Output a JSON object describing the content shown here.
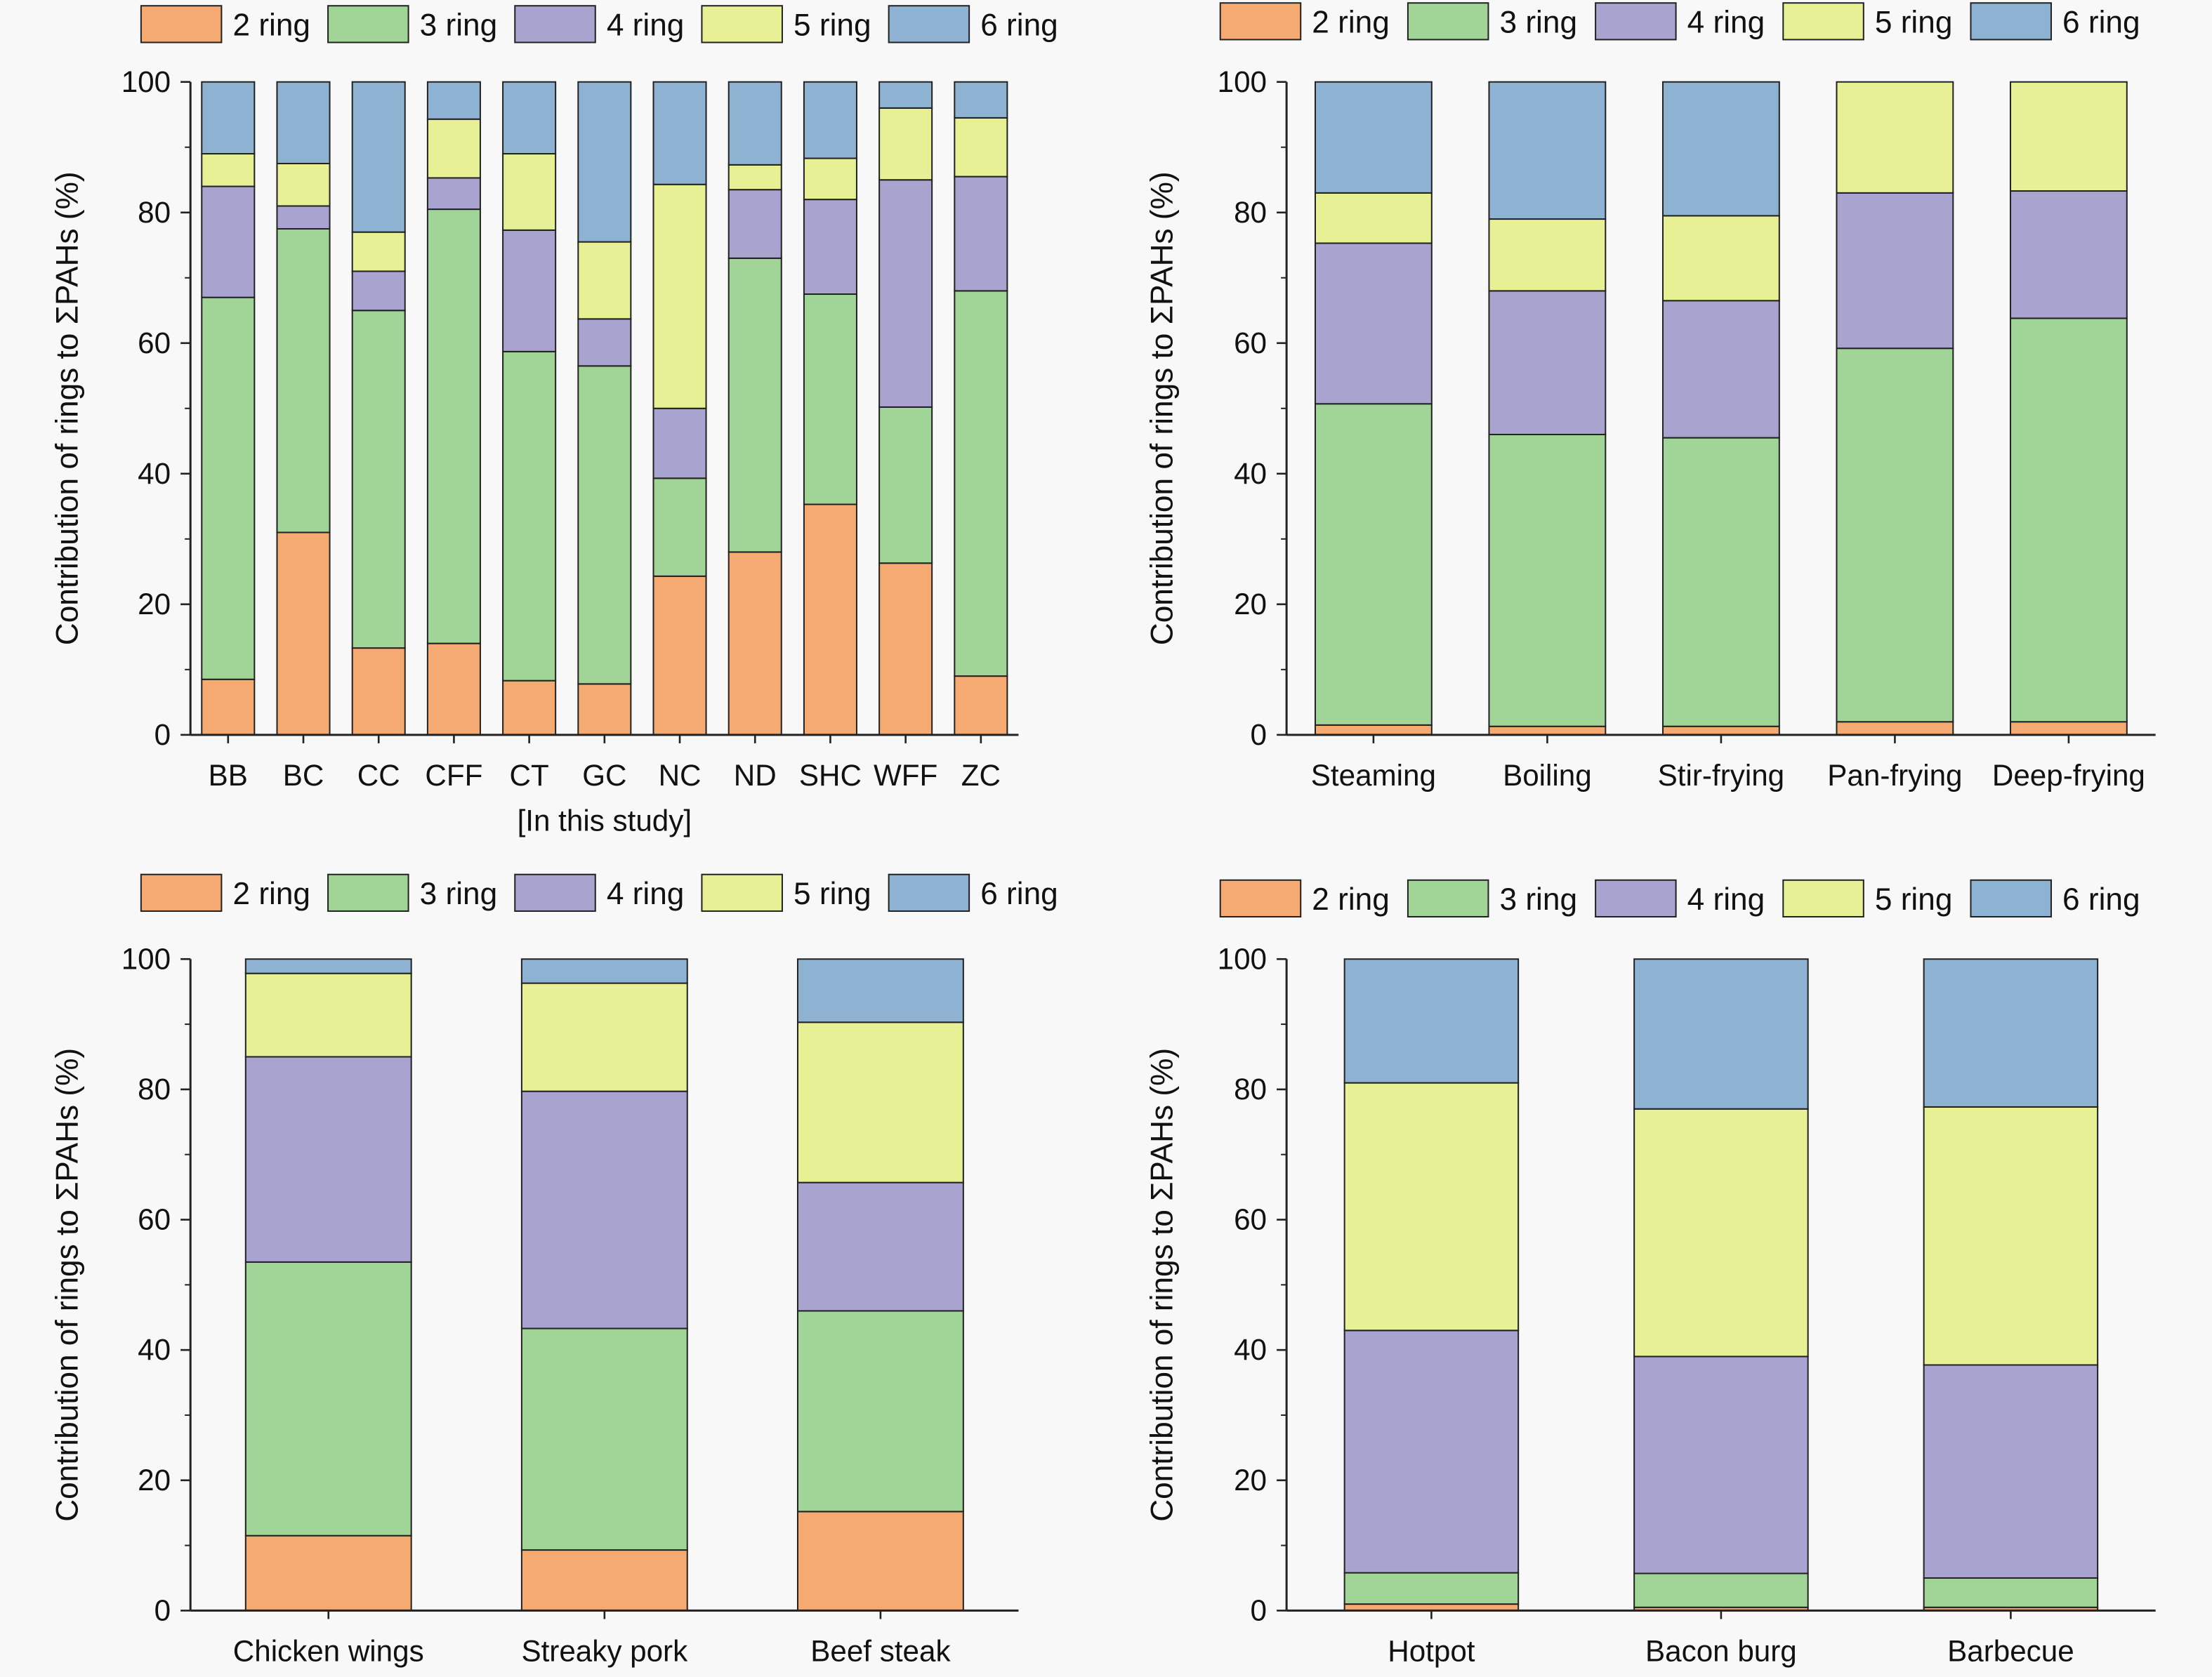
{
  "colors": {
    "2 ring": "#F5AA72",
    "3 ring": "#A0D597",
    "4 ring": "#A9A3CF",
    "5 ring": "#E8F095",
    "6 ring": "#8EB3D2"
  },
  "chart_data": [
    {
      "type": "bar",
      "stacked": true,
      "title": "",
      "xlabel": "[In this study]",
      "ylabel": "Contribution of rings to ΣPAHs (%)",
      "ylim": [
        0,
        100
      ],
      "yticks": [
        0,
        20,
        40,
        60,
        80,
        100
      ],
      "legend": "top",
      "categories": [
        "BB",
        "BC",
        "CC",
        "CFF",
        "CT",
        "GC",
        "NC",
        "ND",
        "SHC",
        "WFF",
        "ZC"
      ],
      "series": [
        {
          "name": "2 ring",
          "values": [
            8.5,
            31,
            13.3,
            14,
            8.3,
            7.8,
            24.3,
            28,
            35.3,
            26.3,
            9
          ]
        },
        {
          "name": "3 ring",
          "values": [
            58.5,
            46.5,
            51.7,
            66.5,
            50.4,
            48.7,
            15,
            45,
            32.2,
            23.9,
            59
          ]
        },
        {
          "name": "4 ring",
          "values": [
            17,
            3.5,
            6,
            4.8,
            18.6,
            7.2,
            10.7,
            10.5,
            14.5,
            34.8,
            17.5
          ]
        },
        {
          "name": "5 ring",
          "values": [
            5,
            6.5,
            6,
            9,
            11.7,
            11.8,
            34.3,
            3.8,
            6.3,
            11,
            9
          ]
        },
        {
          "name": "6 ring",
          "values": [
            11,
            12.5,
            23,
            5.7,
            11,
            24.5,
            15.7,
            12.7,
            11.7,
            4,
            5.5
          ]
        }
      ]
    },
    {
      "type": "bar",
      "stacked": true,
      "title": "",
      "xlabel": "",
      "ylabel": "Contribution of rings to ΣPAHs (%)",
      "ylim": [
        0,
        100
      ],
      "yticks": [
        0,
        20,
        40,
        60,
        80,
        100
      ],
      "legend": "top",
      "categories": [
        "Steaming",
        "Boiling",
        "Stir-frying",
        "Pan-frying",
        "Deep-frying"
      ],
      "series": [
        {
          "name": "2 ring",
          "values": [
            1.5,
            1.3,
            1.3,
            2,
            2
          ]
        },
        {
          "name": "3 ring",
          "values": [
            49.2,
            44.7,
            44.2,
            57.2,
            61.8
          ]
        },
        {
          "name": "4 ring",
          "values": [
            24.6,
            22,
            21,
            23.8,
            19.5
          ]
        },
        {
          "name": "5 ring",
          "values": [
            7.7,
            11,
            13,
            17,
            16.7
          ]
        },
        {
          "name": "6 ring",
          "values": [
            17,
            21,
            20.5,
            0,
            0
          ]
        }
      ]
    },
    {
      "type": "bar",
      "stacked": true,
      "title": "",
      "xlabel": "",
      "ylabel": "Contribution of rings to ΣPAHs (%)",
      "ylim": [
        0,
        100
      ],
      "yticks": [
        0,
        20,
        40,
        60,
        80,
        100
      ],
      "legend": "top",
      "categories": [
        "Chicken wings",
        "Streaky pork",
        "Beef steak"
      ],
      "series": [
        {
          "name": "2 ring",
          "values": [
            11.5,
            9.3,
            15.2
          ]
        },
        {
          "name": "3 ring",
          "values": [
            42,
            34,
            30.8
          ]
        },
        {
          "name": "4 ring",
          "values": [
            31.5,
            36.4,
            19.7
          ]
        },
        {
          "name": "5 ring",
          "values": [
            12.8,
            16.6,
            24.6
          ]
        },
        {
          "name": "6 ring",
          "values": [
            2.2,
            3.7,
            9.7
          ]
        }
      ]
    },
    {
      "type": "bar",
      "stacked": true,
      "title": "",
      "xlabel": "",
      "ylabel": "Contribution of rings to ΣPAHs (%)",
      "ylim": [
        0,
        100
      ],
      "yticks": [
        0,
        20,
        40,
        60,
        80,
        100
      ],
      "legend": "top",
      "categories": [
        "Hotpot",
        "Bacon burg",
        "Barbecue"
      ],
      "series": [
        {
          "name": "2 ring",
          "values": [
            1,
            0.5,
            0.5
          ]
        },
        {
          "name": "3 ring",
          "values": [
            4.8,
            5.2,
            4.5
          ]
        },
        {
          "name": "4 ring",
          "values": [
            37.2,
            33.3,
            32.7
          ]
        },
        {
          "name": "5 ring",
          "values": [
            38,
            38,
            39.6
          ]
        },
        {
          "name": "6 ring",
          "values": [
            19,
            23,
            22.7
          ]
        }
      ]
    }
  ]
}
